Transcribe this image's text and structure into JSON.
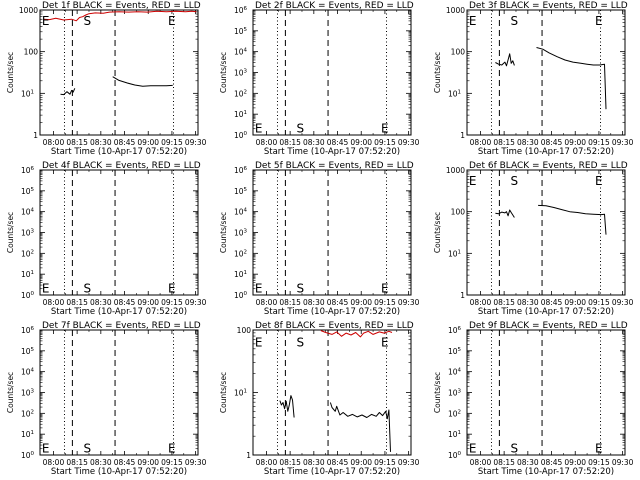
{
  "page": {
    "background": "#ffffff"
  },
  "colors": {
    "events": "#000000",
    "lld": "#cc0000",
    "axis": "#000000"
  },
  "x_tick_labels": [
    "08:00",
    "08:15",
    "08:30",
    "08:45",
    "09:00",
    "09:15",
    "09:30"
  ],
  "x_label": "Start Time (10-Apr-17 07:52:20)",
  "chart_data": [
    {
      "title": "Det 1f BLACK = Events, RED = LLD",
      "ylabel": "Counts/sec",
      "yticks": [
        {
          "exp": 0,
          "label": "1"
        },
        {
          "exp": 1,
          "label": "10"
        },
        {
          "exp": 2,
          "label": "100"
        },
        {
          "exp": 3,
          "label": "1000"
        }
      ],
      "markers": [
        {
          "label": "E",
          "x": 0.012,
          "y_frac": 0.04
        },
        {
          "label": "S",
          "x": 0.275,
          "y_frac": 0.04
        },
        {
          "label": "E",
          "x": 0.81,
          "y_frac": 0.04
        }
      ],
      "series": [
        {
          "color": "red",
          "segments": [
            [
              [
                0.02,
                2.78
              ],
              [
                0.06,
                2.77
              ],
              [
                0.1,
                2.8
              ],
              [
                0.15,
                2.76
              ],
              [
                0.2,
                2.78
              ],
              [
                0.23,
                2.74
              ],
              [
                0.25,
                2.82
              ],
              [
                0.27,
                2.84
              ],
              [
                0.29,
                2.88
              ],
              [
                0.31,
                2.91
              ],
              [
                0.35,
                2.93
              ],
              [
                0.4,
                2.92
              ],
              [
                0.44,
                2.95
              ],
              [
                0.5,
                2.96
              ],
              [
                0.56,
                2.95
              ],
              [
                0.62,
                2.96
              ],
              [
                0.68,
                2.95
              ],
              [
                0.74,
                2.97
              ],
              [
                0.8,
                2.96
              ],
              [
                0.86,
                2.97
              ],
              [
                0.92,
                2.96
              ],
              [
                0.96,
                2.97
              ],
              [
                0.99,
                2.96
              ]
            ]
          ]
        },
        {
          "color": "black",
          "segments": [
            [
              [
                0.13,
                0.98
              ],
              [
                0.15,
                0.97
              ],
              [
                0.17,
                1.04
              ],
              [
                0.19,
                0.98
              ],
              [
                0.2,
                1.07
              ],
              [
                0.21,
                1.03
              ],
              [
                0.22,
                1.12
              ]
            ],
            [
              [
                0.46,
                1.4
              ],
              [
                0.5,
                1.31
              ],
              [
                0.55,
                1.25
              ],
              [
                0.6,
                1.2
              ],
              [
                0.65,
                1.17
              ],
              [
                0.7,
                1.18
              ],
              [
                0.75,
                1.18
              ],
              [
                0.8,
                1.18
              ],
              [
                0.84,
                1.19
              ]
            ]
          ]
        }
      ]
    },
    {
      "title": "Det 2f BLACK = Events, RED = LLD",
      "ylabel": "Counts/sec",
      "yticks": [
        {
          "exp": 0,
          "label": "10"
        },
        {
          "exp": 1,
          "label": "10"
        },
        {
          "exp": 2,
          "label": "10"
        },
        {
          "exp": 3,
          "label": "10"
        },
        {
          "exp": 4,
          "label": "10"
        },
        {
          "exp": 5,
          "label": "10"
        },
        {
          "exp": 6,
          "label": "10"
        }
      ],
      "markers": [
        {
          "label": "E",
          "x": 0.012,
          "y_frac": 0.9
        },
        {
          "label": "S",
          "x": 0.275,
          "y_frac": 0.9
        },
        {
          "label": "E",
          "x": 0.81,
          "y_frac": 0.9
        }
      ],
      "series": []
    },
    {
      "title": "Det 3f BLACK = Events, RED = LLD",
      "ylabel": "Counts/sec",
      "yticks": [
        {
          "exp": 0,
          "label": "1"
        },
        {
          "exp": 1,
          "label": "10"
        },
        {
          "exp": 2,
          "label": "100"
        },
        {
          "exp": 3,
          "label": "1000"
        }
      ],
      "markers": [
        {
          "label": "E",
          "x": 0.012,
          "y_frac": 0.04
        },
        {
          "label": "S",
          "x": 0.275,
          "y_frac": 0.04
        },
        {
          "label": "E",
          "x": 0.81,
          "y_frac": 0.04
        }
      ],
      "series": [
        {
          "color": "black",
          "segments": [
            [
              [
                0.18,
                1.74
              ],
              [
                0.2,
                1.7
              ],
              [
                0.22,
                1.68
              ],
              [
                0.24,
                1.75
              ],
              [
                0.25,
                1.66
              ],
              [
                0.27,
                1.95
              ],
              [
                0.28,
                1.72
              ],
              [
                0.29,
                1.78
              ],
              [
                0.3,
                1.67
              ]
            ],
            [
              [
                0.44,
                2.1
              ],
              [
                0.48,
                2.06
              ],
              [
                0.52,
                1.97
              ],
              [
                0.57,
                1.88
              ],
              [
                0.62,
                1.8
              ],
              [
                0.67,
                1.75
              ],
              [
                0.72,
                1.72
              ],
              [
                0.76,
                1.7
              ],
              [
                0.8,
                1.68
              ],
              [
                0.84,
                1.68
              ],
              [
                0.87,
                1.7
              ],
              [
                0.88,
                0.62
              ]
            ]
          ]
        }
      ]
    },
    {
      "title": "Det 4f BLACK = Events, RED = LLD",
      "ylabel": "Counts/sec",
      "yticks": [
        {
          "exp": 0,
          "label": "10"
        },
        {
          "exp": 1,
          "label": "10"
        },
        {
          "exp": 2,
          "label": "10"
        },
        {
          "exp": 3,
          "label": "10"
        },
        {
          "exp": 4,
          "label": "10"
        },
        {
          "exp": 5,
          "label": "10"
        },
        {
          "exp": 6,
          "label": "10"
        }
      ],
      "markers": [
        {
          "label": "E",
          "x": 0.012,
          "y_frac": 0.9
        },
        {
          "label": "S",
          "x": 0.275,
          "y_frac": 0.9
        },
        {
          "label": "E",
          "x": 0.81,
          "y_frac": 0.9
        }
      ],
      "series": []
    },
    {
      "title": "Det 5f BLACK = Events, RED = LLD",
      "ylabel": "Counts/sec",
      "yticks": [
        {
          "exp": 0,
          "label": "10"
        },
        {
          "exp": 1,
          "label": "10"
        },
        {
          "exp": 2,
          "label": "10"
        },
        {
          "exp": 3,
          "label": "10"
        },
        {
          "exp": 4,
          "label": "10"
        },
        {
          "exp": 5,
          "label": "10"
        },
        {
          "exp": 6,
          "label": "10"
        }
      ],
      "markers": [
        {
          "label": "E",
          "x": 0.012,
          "y_frac": 0.9
        },
        {
          "label": "S",
          "x": 0.275,
          "y_frac": 0.9
        },
        {
          "label": "E",
          "x": 0.81,
          "y_frac": 0.9
        }
      ],
      "series": []
    },
    {
      "title": "Det 6f BLACK = Events, RED = LLD",
      "ylabel": "Counts/sec",
      "yticks": [
        {
          "exp": 0,
          "label": "1"
        },
        {
          "exp": 1,
          "label": "10"
        },
        {
          "exp": 2,
          "label": "100"
        },
        {
          "exp": 3,
          "label": "1000"
        }
      ],
      "markers": [
        {
          "label": "E",
          "x": 0.012,
          "y_frac": 0.04
        },
        {
          "label": "S",
          "x": 0.275,
          "y_frac": 0.04
        },
        {
          "label": "E",
          "x": 0.81,
          "y_frac": 0.04
        }
      ],
      "series": [
        {
          "color": "black",
          "segments": [
            [
              [
                0.18,
                1.96
              ],
              [
                0.2,
                1.95
              ],
              [
                0.22,
                1.99
              ],
              [
                0.24,
                1.97
              ],
              [
                0.25,
                2.0
              ],
              [
                0.26,
                1.9
              ],
              [
                0.27,
                2.04
              ],
              [
                0.28,
                1.98
              ],
              [
                0.3,
                1.86
              ]
            ],
            [
              [
                0.45,
                2.15
              ],
              [
                0.5,
                2.14
              ],
              [
                0.55,
                2.1
              ],
              [
                0.6,
                2.05
              ],
              [
                0.65,
                2.0
              ],
              [
                0.7,
                1.98
              ],
              [
                0.75,
                1.95
              ],
              [
                0.8,
                1.94
              ],
              [
                0.85,
                1.93
              ],
              [
                0.87,
                1.94
              ],
              [
                0.88,
                1.45
              ]
            ]
          ]
        }
      ]
    },
    {
      "title": "Det 7f BLACK = Events, RED = LLD",
      "ylabel": "Counts/sec",
      "yticks": [
        {
          "exp": 0,
          "label": "10"
        },
        {
          "exp": 1,
          "label": "10"
        },
        {
          "exp": 2,
          "label": "10"
        },
        {
          "exp": 3,
          "label": "10"
        },
        {
          "exp": 4,
          "label": "10"
        },
        {
          "exp": 5,
          "label": "10"
        },
        {
          "exp": 6,
          "label": "10"
        }
      ],
      "markers": [
        {
          "label": "E",
          "x": 0.012,
          "y_frac": 0.9
        },
        {
          "label": "S",
          "x": 0.275,
          "y_frac": 0.9
        },
        {
          "label": "E",
          "x": 0.81,
          "y_frac": 0.9
        }
      ],
      "series": []
    },
    {
      "title": "Det 8f BLACK = Events, RED = LLD",
      "ylabel": "Counts/sec",
      "yticks": [
        {
          "exp": 0,
          "label": "1"
        },
        {
          "exp": 1,
          "label": "10"
        },
        {
          "exp": 2,
          "label": "100"
        }
      ],
      "markers": [
        {
          "label": "E",
          "x": 0.012,
          "y_frac": 0.05
        },
        {
          "label": "S",
          "x": 0.275,
          "y_frac": 0.05
        },
        {
          "label": "E",
          "x": 0.81,
          "y_frac": 0.05
        }
      ],
      "series": [
        {
          "color": "red",
          "segments": [
            [
              [
                0.43,
                1.99
              ],
              [
                0.46,
                1.96
              ],
              [
                0.5,
                1.93
              ],
              [
                0.53,
                1.97
              ],
              [
                0.56,
                1.9
              ],
              [
                0.59,
                1.95
              ],
              [
                0.62,
                1.92
              ],
              [
                0.65,
                1.96
              ],
              [
                0.68,
                1.89
              ],
              [
                0.7,
                1.95
              ],
              [
                0.73,
                1.98
              ],
              [
                0.76,
                1.93
              ],
              [
                0.8,
                1.97
              ],
              [
                0.83,
                1.95
              ],
              [
                0.86,
                1.98
              ],
              [
                0.88,
                1.96
              ]
            ]
          ]
        },
        {
          "color": "black",
          "segments": [
            [
              [
                0.17,
                0.87
              ],
              [
                0.18,
                0.8
              ],
              [
                0.19,
                0.84
              ],
              [
                0.2,
                0.74
              ],
              [
                0.21,
                0.86
              ],
              [
                0.22,
                0.7
              ],
              [
                0.23,
                0.8
              ],
              [
                0.24,
                0.95
              ],
              [
                0.25,
                0.88
              ],
              [
                0.26,
                0.6
              ]
            ],
            [
              [
                0.49,
                0.84
              ],
              [
                0.5,
                0.76
              ],
              [
                0.52,
                0.7
              ],
              [
                0.53,
                0.78
              ],
              [
                0.55,
                0.64
              ],
              [
                0.57,
                0.68
              ],
              [
                0.6,
                0.62
              ],
              [
                0.63,
                0.65
              ],
              [
                0.66,
                0.61
              ],
              [
                0.69,
                0.64
              ],
              [
                0.72,
                0.6
              ],
              [
                0.75,
                0.65
              ],
              [
                0.78,
                0.62
              ],
              [
                0.8,
                0.68
              ],
              [
                0.82,
                0.63
              ],
              [
                0.84,
                0.7
              ],
              [
                0.85,
                0.58
              ],
              [
                0.86,
                0.72
              ],
              [
                0.87,
                0.05
              ]
            ]
          ]
        }
      ]
    },
    {
      "title": "Det 9f BLACK = Events, RED = LLD",
      "ylabel": "Counts/sec",
      "yticks": [
        {
          "exp": 0,
          "label": "10"
        },
        {
          "exp": 1,
          "label": "10"
        },
        {
          "exp": 2,
          "label": "10"
        },
        {
          "exp": 3,
          "label": "10"
        },
        {
          "exp": 4,
          "label": "10"
        },
        {
          "exp": 5,
          "label": "10"
        },
        {
          "exp": 6,
          "label": "10"
        }
      ],
      "markers": [
        {
          "label": "E",
          "x": 0.012,
          "y_frac": 0.9
        },
        {
          "label": "S",
          "x": 0.275,
          "y_frac": 0.9
        },
        {
          "label": "E",
          "x": 0.81,
          "y_frac": 0.9
        }
      ],
      "series": []
    }
  ]
}
